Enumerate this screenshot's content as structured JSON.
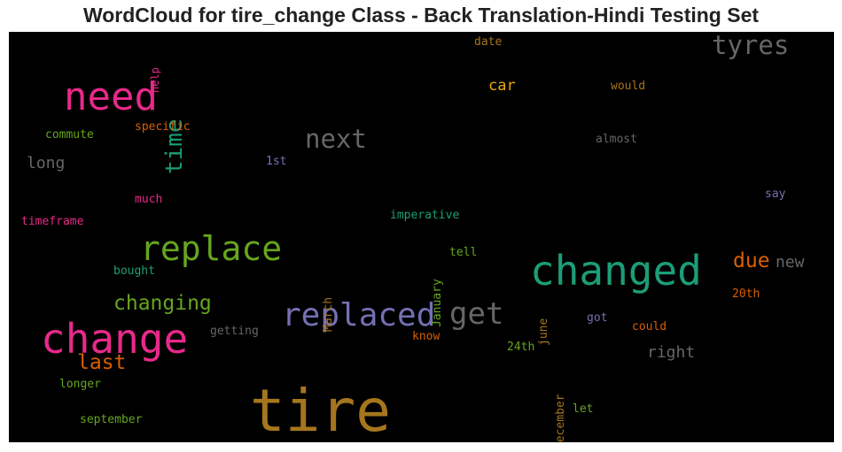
{
  "chart_data": {
    "type": "wordcloud",
    "title": "WordCloud for tire_change Class - Back Translation-Hindi Testing Set",
    "background": "#000000",
    "words": [
      {
        "text": "tire",
        "color": "#a6761d",
        "vertical": false
      },
      {
        "text": "change",
        "color": "#e7298a",
        "vertical": false
      },
      {
        "text": "changed",
        "color": "#1b9e77",
        "vertical": false
      },
      {
        "text": "need",
        "color": "#e7298a",
        "vertical": false
      },
      {
        "text": "replace",
        "color": "#66a61e",
        "vertical": false
      },
      {
        "text": "replaced",
        "color": "#7570b3",
        "vertical": false
      },
      {
        "text": "get",
        "color": "#666666",
        "vertical": false
      },
      {
        "text": "tyres",
        "color": "#666666",
        "vertical": false
      },
      {
        "text": "next",
        "color": "#666666",
        "vertical": false
      },
      {
        "text": "time",
        "color": "#1b9e77",
        "vertical": true
      },
      {
        "text": "changing",
        "color": "#66a61e",
        "vertical": false
      },
      {
        "text": "last",
        "color": "#d95f02",
        "vertical": false
      },
      {
        "text": "due",
        "color": "#d95f02",
        "vertical": false
      },
      {
        "text": "new",
        "color": "#666666",
        "vertical": false
      },
      {
        "text": "car",
        "color": "#e6ab02",
        "vertical": false
      },
      {
        "text": "right",
        "color": "#666666",
        "vertical": false
      },
      {
        "text": "long",
        "color": "#666666",
        "vertical": false
      },
      {
        "text": "help",
        "color": "#e7298a",
        "vertical": true
      },
      {
        "text": "date",
        "color": "#a6761d",
        "vertical": false
      },
      {
        "text": "would",
        "color": "#a6761d",
        "vertical": false
      },
      {
        "text": "specific",
        "color": "#d95f02",
        "vertical": false
      },
      {
        "text": "commute",
        "color": "#66a61e",
        "vertical": false
      },
      {
        "text": "almost",
        "color": "#666666",
        "vertical": false
      },
      {
        "text": "1st",
        "color": "#7570b3",
        "vertical": false
      },
      {
        "text": "much",
        "color": "#e7298a",
        "vertical": false
      },
      {
        "text": "say",
        "color": "#7570b3",
        "vertical": false
      },
      {
        "text": "imperative",
        "color": "#1b9e77",
        "vertical": false
      },
      {
        "text": "timeframe",
        "color": "#e7298a",
        "vertical": false
      },
      {
        "text": "January",
        "color": "#66a61e",
        "vertical": true
      },
      {
        "text": "tell",
        "color": "#66a61e",
        "vertical": false
      },
      {
        "text": "March",
        "color": "#a6761d",
        "vertical": true
      },
      {
        "text": "bought",
        "color": "#1b9e77",
        "vertical": false
      },
      {
        "text": "20th",
        "color": "#d95f02",
        "vertical": false
      },
      {
        "text": "june",
        "color": "#a6761d",
        "vertical": true
      },
      {
        "text": "got",
        "color": "#7570b3",
        "vertical": false
      },
      {
        "text": "getting",
        "color": "#666666",
        "vertical": false
      },
      {
        "text": "could",
        "color": "#d95f02",
        "vertical": false
      },
      {
        "text": "know",
        "color": "#d95f02",
        "vertical": false
      },
      {
        "text": "24th",
        "color": "#66a61e",
        "vertical": false
      },
      {
        "text": "December",
        "color": "#a6761d",
        "vertical": true
      },
      {
        "text": "longer",
        "color": "#66a61e",
        "vertical": false
      },
      {
        "text": "september",
        "color": "#66a61e",
        "vertical": false
      },
      {
        "text": "let",
        "color": "#66a61e",
        "vertical": false
      }
    ]
  }
}
